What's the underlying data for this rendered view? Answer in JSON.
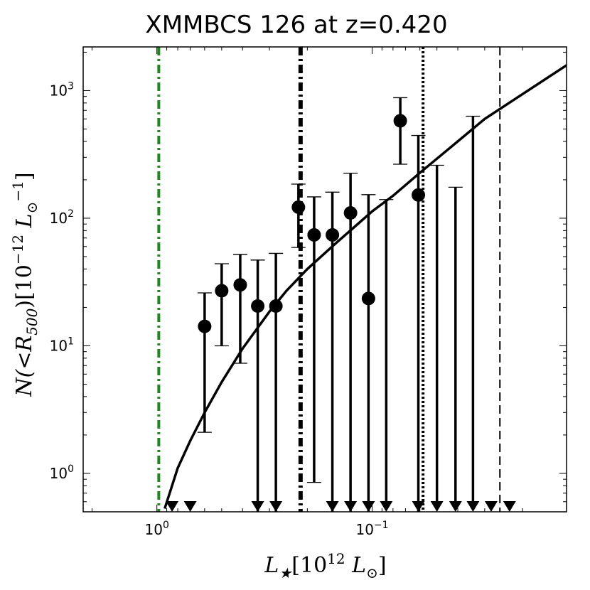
{
  "chart_data": {
    "type": "scatter",
    "title": "XMMBCS 126 at z=0.420",
    "xlabel": {
      "main": "L",
      "sub": "★",
      "bracket": "[10",
      "exp": "12",
      "unit": " L",
      "unit_sub": "⊙",
      "close": "]"
    },
    "ylabel": {
      "main": "N(<R",
      "sub": "500",
      "mid": ")[10",
      "exp": "−12",
      "unit": " L",
      "unit_sub": "⊙",
      "unit_exp": "−1",
      "close": "]"
    },
    "x_scale": "log",
    "y_scale": "log",
    "x_reversed": true,
    "xlim": [
      2.2,
      0.0125
    ],
    "ylim": [
      0.5,
      2200
    ],
    "x_ticks": [
      {
        "value": 1,
        "base": "10",
        "exp": "0"
      },
      {
        "value": 0.1,
        "base": "10",
        "exp": "−1"
      }
    ],
    "y_ticks": [
      {
        "value": 1,
        "base": "10",
        "exp": "0"
      },
      {
        "value": 10,
        "base": "10",
        "exp": "1"
      },
      {
        "value": 100,
        "base": "10",
        "exp": "2"
      },
      {
        "value": 1000,
        "base": "10",
        "exp": "3"
      }
    ],
    "grid": false,
    "points": [
      {
        "x": 0.6,
        "y": 14.2,
        "low": 2.1,
        "high": 26
      },
      {
        "x": 0.5,
        "y": 27,
        "low": 10,
        "high": 44
      },
      {
        "x": 0.41,
        "y": 30,
        "low": 7.3,
        "high": 52
      },
      {
        "x": 0.34,
        "y": 20.5,
        "low": 0.5,
        "high": 47
      },
      {
        "x": 0.28,
        "y": 20.5,
        "low": 0.5,
        "high": 53
      },
      {
        "x": 0.22,
        "y": 122,
        "low": 59,
        "high": 185
      },
      {
        "x": 0.186,
        "y": 74,
        "low": 0.85,
        "high": 147
      },
      {
        "x": 0.153,
        "y": 74,
        "low": 0.5,
        "high": 160
      },
      {
        "x": 0.126,
        "y": 110,
        "low": 0.5,
        "high": 225
      },
      {
        "x": 0.104,
        "y": 23.5,
        "low": 0.5,
        "high": 153
      },
      {
        "x": 0.074,
        "y": 580,
        "low": 265,
        "high": 880
      },
      {
        "x": 0.061,
        "y": 152,
        "low": 0.5,
        "high": 445
      }
    ],
    "upper_limits": [
      {
        "x": 0.85,
        "high": null
      },
      {
        "x": 0.7,
        "high": null
      },
      {
        "x": 0.086,
        "high": 140
      },
      {
        "x": 0.05,
        "high": 260
      },
      {
        "x": 0.041,
        "high": 175
      },
      {
        "x": 0.034,
        "high": 630
      },
      {
        "x": 0.028,
        "high": null
      },
      {
        "x": 0.023,
        "high": null
      }
    ],
    "model_curve": {
      "x": [
        0.92,
        0.8,
        0.7,
        0.6,
        0.5,
        0.4,
        0.3,
        0.25,
        0.2,
        0.15,
        0.1,
        0.08,
        0.06,
        0.04,
        0.03,
        0.0125
      ],
      "y": [
        0.53,
        1.1,
        1.8,
        3.0,
        5.2,
        9.5,
        18.5,
        27,
        40,
        62,
        113,
        150,
        227,
        400,
        600,
        1580
      ]
    },
    "vertical_lines": [
      {
        "x": 0.98,
        "style": "dashdot",
        "color": "#1a8a1a",
        "width": 4
      },
      {
        "x": 0.215,
        "style": "dashdot",
        "color": "#000000",
        "width": 6
      },
      {
        "x": 0.058,
        "style": "dotted",
        "color": "#000000",
        "width": 4
      },
      {
        "x": 0.0255,
        "style": "dashed",
        "color": "#000000",
        "width": 2
      }
    ],
    "marker_color": "#000000"
  }
}
